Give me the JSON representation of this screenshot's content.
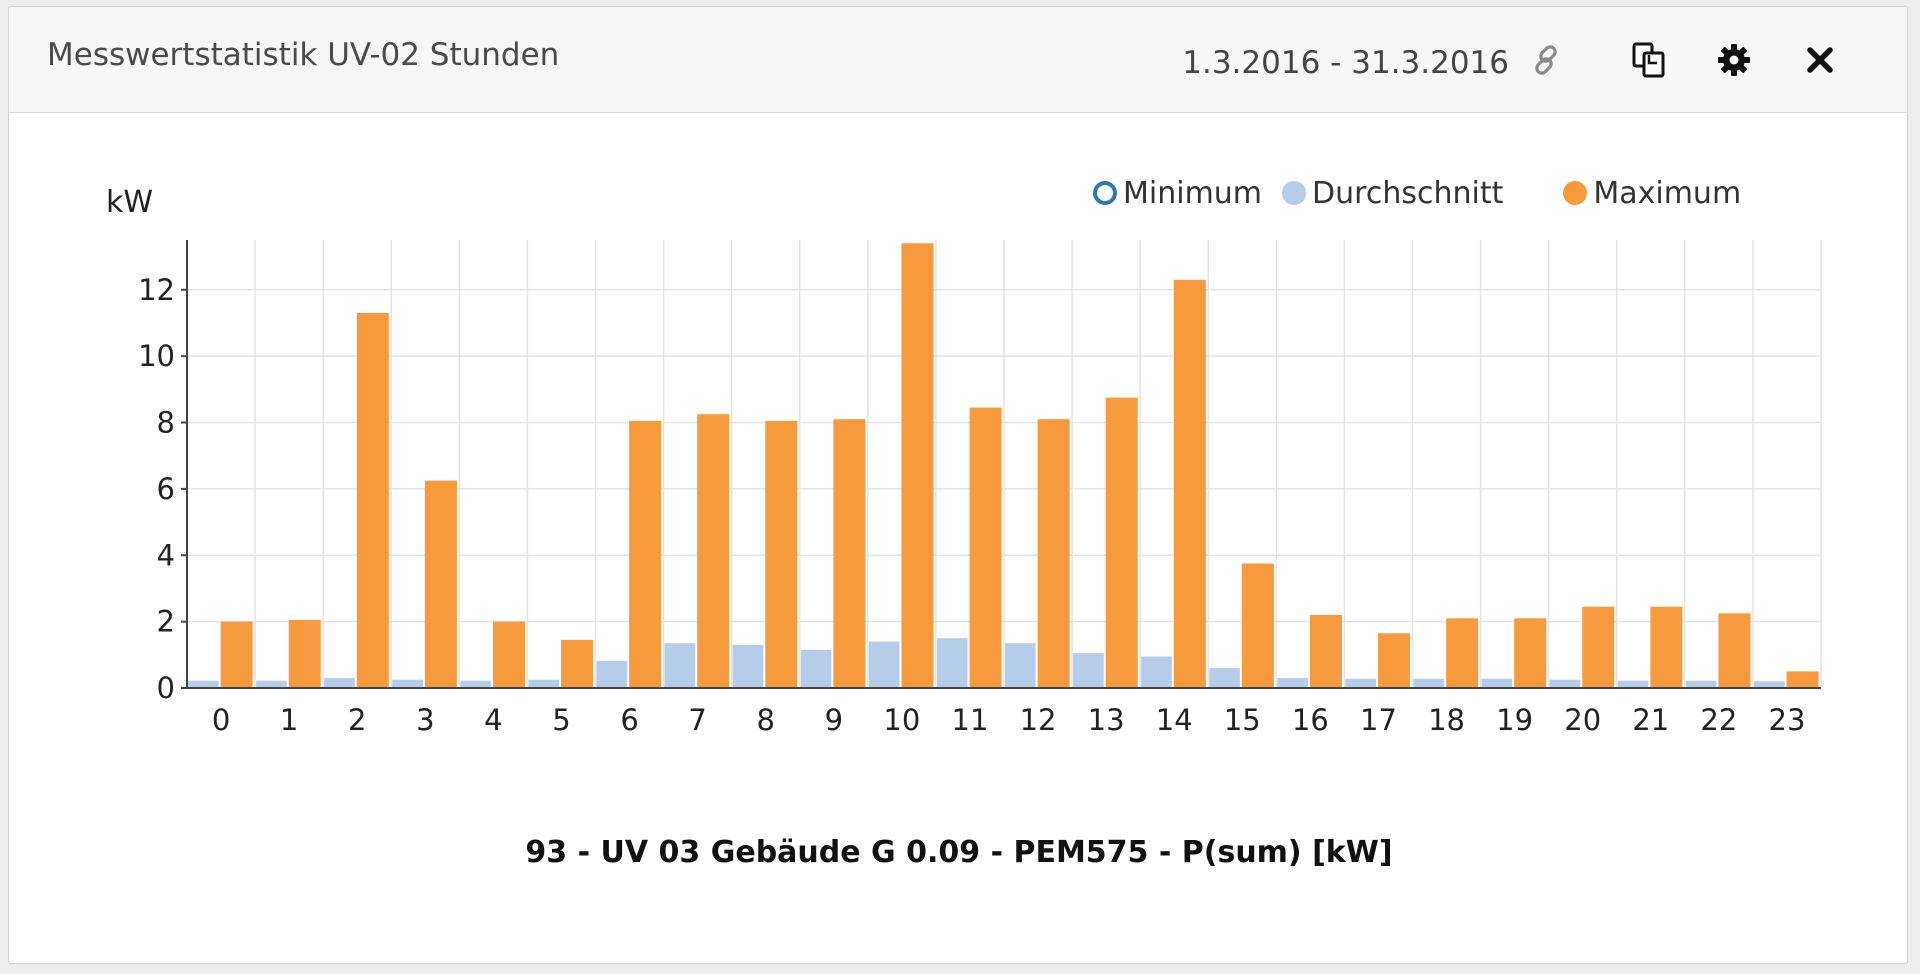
{
  "header": {
    "title": "Messwertstatistik UV-02 Stunden",
    "date_range": "1.3.2016 - 31.3.2016"
  },
  "icons": {
    "link": "link-icon",
    "copy": "copy-icon",
    "settings": "gear-icon",
    "close": "close-icon"
  },
  "colors": {
    "minimum": "#2b7aa8",
    "durchschnitt": "#b6cdea",
    "maximum": "#f79a3e",
    "grid": "#e4e4e4"
  },
  "chart_data": {
    "type": "bar",
    "title": "",
    "xlabel": "93 - UV 03 Gebäude G 0.09 - PEM575 - P(sum) [kW]",
    "ylabel": "kW",
    "ylim": [
      0,
      13.5
    ],
    "yticks": [
      0,
      2,
      4,
      6,
      8,
      10,
      12
    ],
    "grid": true,
    "legend_position": "top-right",
    "categories": [
      "0",
      "1",
      "2",
      "3",
      "4",
      "5",
      "6",
      "7",
      "8",
      "9",
      "10",
      "11",
      "12",
      "13",
      "14",
      "15",
      "16",
      "17",
      "18",
      "19",
      "20",
      "21",
      "22",
      "23"
    ],
    "series": [
      {
        "name": "Minimum",
        "values": [
          0.05,
          0.05,
          0.05,
          0.05,
          0.05,
          0.05,
          0.05,
          0.05,
          0.05,
          0.05,
          0.05,
          0.05,
          0.05,
          0.05,
          0.05,
          0.05,
          0.05,
          0.05,
          0.05,
          0.05,
          0.05,
          0.05,
          0.05,
          0.05
        ]
      },
      {
        "name": "Durchschnitt",
        "values": [
          0.22,
          0.22,
          0.3,
          0.25,
          0.22,
          0.25,
          0.82,
          1.35,
          1.3,
          1.15,
          1.4,
          1.5,
          1.35,
          1.05,
          0.95,
          0.6,
          0.3,
          0.28,
          0.28,
          0.28,
          0.25,
          0.22,
          0.22,
          0.2
        ]
      },
      {
        "name": "Maximum",
        "values": [
          2.0,
          2.05,
          11.3,
          6.25,
          2.0,
          1.45,
          8.05,
          8.25,
          8.05,
          8.1,
          13.4,
          8.45,
          8.1,
          8.75,
          12.3,
          3.75,
          2.2,
          1.65,
          2.1,
          2.1,
          2.45,
          2.45,
          2.25,
          0.5
        ]
      }
    ]
  }
}
